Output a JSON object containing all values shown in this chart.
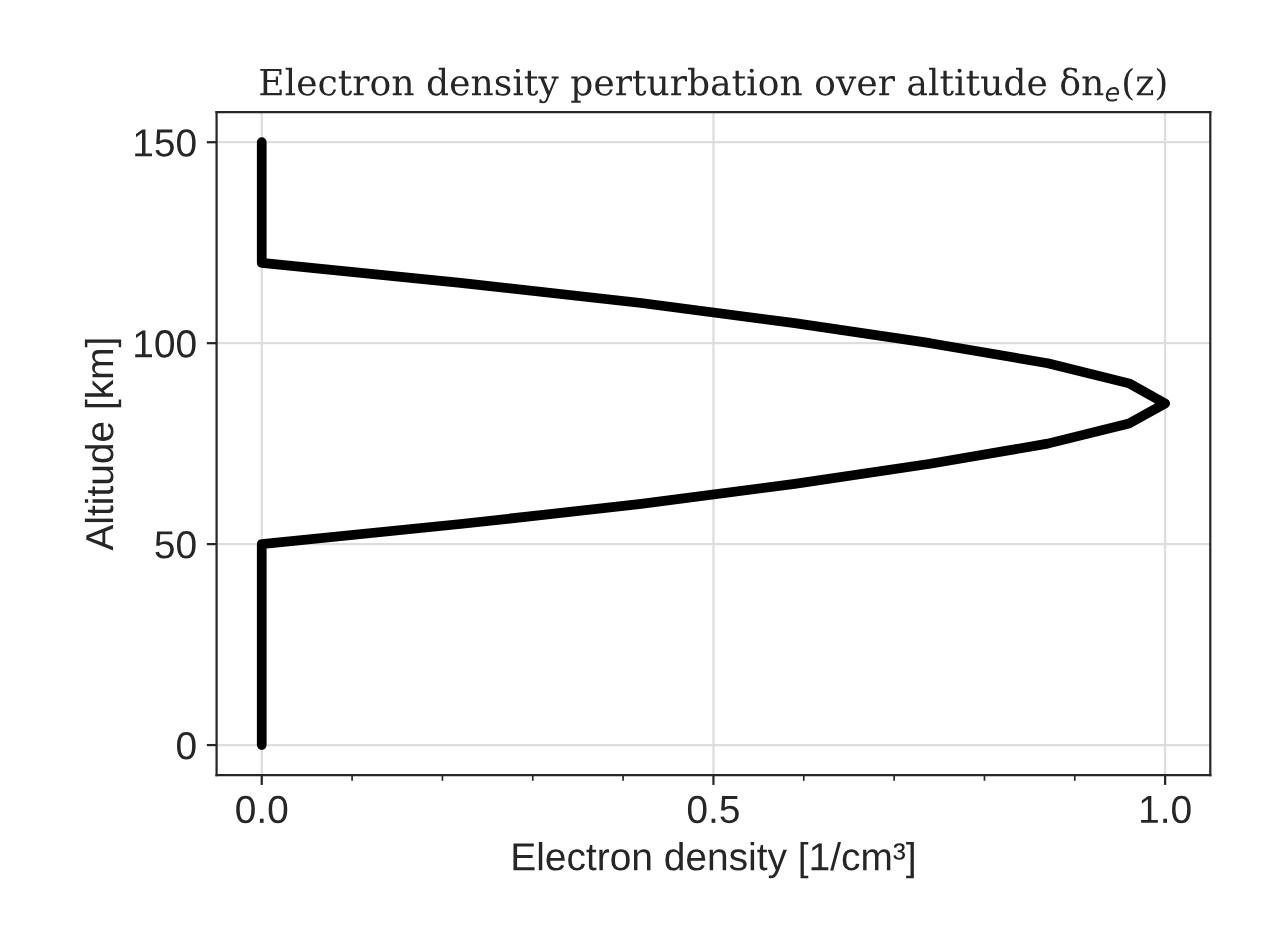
{
  "chart_data": {
    "type": "line",
    "title": "Electron density perturbation over altitude δn$_{e}$(z)",
    "xlabel": "Electron density [1/cm³]",
    "ylabel": "Altitude [km]",
    "series": [
      {
        "color": "#000000",
        "x": [
          0,
          0,
          0.22,
          0.42,
          0.59,
          0.74,
          0.87,
          0.96,
          1,
          0.96,
          0.87,
          0.74,
          0.59,
          0.42,
          0.22,
          0,
          0
        ],
        "values": [
          0,
          50,
          55,
          60,
          65,
          70,
          75,
          80,
          85,
          90,
          95,
          100,
          105,
          110,
          115,
          120,
          150
        ]
      }
    ],
    "xlim": [
      -0.05,
      1.05
    ],
    "ylim": [
      -7.5,
      157.5
    ],
    "xticks": [
      {
        "value": 0,
        "label": "0.0"
      },
      {
        "value": 0.5,
        "label": "0.5"
      },
      {
        "value": 1,
        "label": "1.0"
      }
    ],
    "yticks": [
      0,
      50,
      100,
      150
    ],
    "grid": true,
    "marker": "none",
    "line_style": "solid",
    "legend": false
  }
}
